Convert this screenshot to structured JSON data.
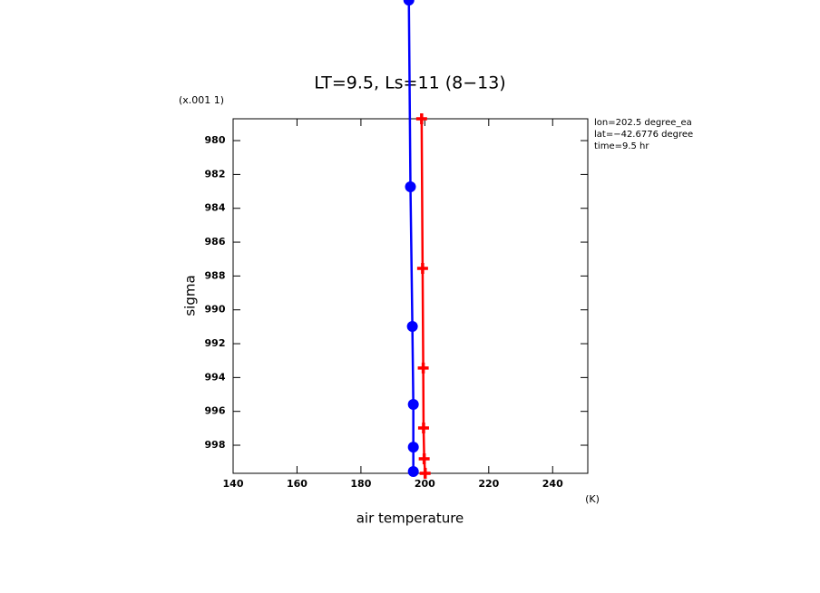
{
  "chart_data": {
    "type": "line",
    "title": "LT=9.5, Ls=11 (8−13)",
    "y_scale_label": "(x.001 1)",
    "ylabel": "sigma",
    "xlabel": "air temperature",
    "x_unit": "(K)",
    "info": [
      "lon=202.5 degree_ea",
      "lat=−42.6776 degree",
      "time=9.5 hr"
    ],
    "xlim": [
      140,
      251
    ],
    "xticks": [
      140,
      160,
      180,
      200,
      220,
      240
    ],
    "ylim": [
      999.66,
      978.71
    ],
    "yticks": [
      980,
      982,
      984,
      986,
      988,
      990,
      992,
      994,
      996,
      998
    ],
    "series": [
      {
        "color": "#0000ff",
        "marker": "circle",
        "x": [
          195.0,
          195.5,
          196.1,
          196.4,
          196.4,
          196.4
        ],
        "values": [
          971.7,
          982.73,
          990.98,
          995.59,
          998.11,
          999.55
        ]
      },
      {
        "color": "#ff0000",
        "marker": "plus",
        "x": [
          199.0,
          199.3,
          199.5,
          199.6,
          199.8,
          200.1
        ],
        "values": [
          978.71,
          987.55,
          993.44,
          996.98,
          998.8,
          999.66
        ]
      }
    ]
  }
}
